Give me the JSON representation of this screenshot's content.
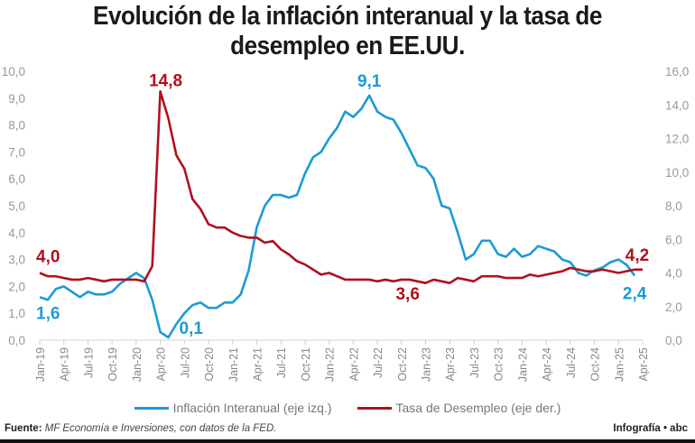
{
  "chart_data": {
    "type": "line",
    "title": "Evolución de la inflación interanual y la tasa de desempleo en EE.UU.",
    "x_tick_labels": [
      "Jan-19",
      "Apr-19",
      "Jul-19",
      "Oct-19",
      "Jan-20",
      "Apr-20",
      "Jul-20",
      "Oct-20",
      "Jan-21",
      "Apr-21",
      "Jul-21",
      "Oct-21",
      "Jan-22",
      "Apr-22",
      "Jul-22",
      "Oct-22",
      "Jan-23",
      "Apr-23",
      "Jul-23",
      "Oct-23",
      "Jan-24",
      "Apr-24",
      "Jul-24",
      "Oct-24",
      "Jan-25",
      "Apr-25"
    ],
    "x_start": "Jan-19",
    "x_end": "Apr-25",
    "y_left": {
      "range": [
        0,
        10
      ],
      "ticks": [
        "0,0",
        "1,0",
        "2,0",
        "3,0",
        "4,0",
        "5,0",
        "6,0",
        "7,0",
        "8,0",
        "9,0",
        "10,0"
      ]
    },
    "y_right": {
      "range": [
        0,
        16
      ],
      "ticks": [
        "0,0",
        "2,0",
        "4,0",
        "6,0",
        "8,0",
        "10,0",
        "12,0",
        "14,0",
        "16,0"
      ]
    },
    "grid": false,
    "legend_placement": "bottom",
    "series": [
      {
        "name": "Inflación Interanual (eje izq.)",
        "axis": "left",
        "color": "#1a9bd7",
        "values": [
          1.6,
          1.5,
          1.9,
          2.0,
          1.8,
          1.6,
          1.8,
          1.7,
          1.7,
          1.8,
          2.1,
          2.3,
          2.5,
          2.3,
          1.5,
          0.3,
          0.1,
          0.6,
          1.0,
          1.3,
          1.4,
          1.2,
          1.2,
          1.4,
          1.4,
          1.7,
          2.6,
          4.2,
          5.0,
          5.4,
          5.4,
          5.3,
          5.4,
          6.2,
          6.8,
          7.0,
          7.5,
          7.9,
          8.5,
          8.3,
          8.6,
          9.1,
          8.5,
          8.3,
          8.2,
          7.7,
          7.1,
          6.5,
          6.4,
          6.0,
          5.0,
          4.9,
          4.0,
          3.0,
          3.2,
          3.7,
          3.7,
          3.2,
          3.1,
          3.4,
          3.1,
          3.2,
          3.5,
          3.4,
          3.3,
          3.0,
          2.9,
          2.5,
          2.4,
          2.6,
          2.7,
          2.9,
          3.0,
          2.8,
          2.4
        ]
      },
      {
        "name": "Tasa de Desempleo (eje der.)",
        "axis": "right",
        "color": "#b0101e",
        "values": [
          4.0,
          3.8,
          3.8,
          3.7,
          3.6,
          3.6,
          3.7,
          3.6,
          3.5,
          3.6,
          3.6,
          3.6,
          3.6,
          3.5,
          4.4,
          14.8,
          13.2,
          11.0,
          10.2,
          8.4,
          7.8,
          6.9,
          6.7,
          6.7,
          6.4,
          6.2,
          6.1,
          6.1,
          5.8,
          5.9,
          5.4,
          5.1,
          4.7,
          4.5,
          4.2,
          3.9,
          4.0,
          3.8,
          3.6,
          3.6,
          3.6,
          3.6,
          3.5,
          3.6,
          3.5,
          3.6,
          3.6,
          3.5,
          3.4,
          3.6,
          3.5,
          3.4,
          3.7,
          3.6,
          3.5,
          3.8,
          3.8,
          3.8,
          3.7,
          3.7,
          3.7,
          3.9,
          3.8,
          3.9,
          4.0,
          4.1,
          4.3,
          4.2,
          4.1,
          4.1,
          4.2,
          4.1,
          4.0,
          4.1,
          4.2,
          4.2
        ]
      }
    ],
    "annotations": [
      {
        "text": "1,6",
        "series": 0,
        "index": 0
      },
      {
        "text": "0,1",
        "series": 0,
        "index": 16
      },
      {
        "text": "9,1",
        "series": 0,
        "index": 41
      },
      {
        "text": "2,4",
        "series": 0,
        "index": 74
      },
      {
        "text": "4,0",
        "series": 1,
        "index": 0
      },
      {
        "text": "14,8",
        "series": 1,
        "index": 15
      },
      {
        "text": "3,6",
        "series": 1,
        "index": 46
      },
      {
        "text": "4,2",
        "series": 1,
        "index": 75
      }
    ]
  },
  "footer": {
    "source_label": "Fuente:",
    "source_text": "MF Economía e Inversiones, con datos de la FED.",
    "credit": "Infografía • abc"
  }
}
